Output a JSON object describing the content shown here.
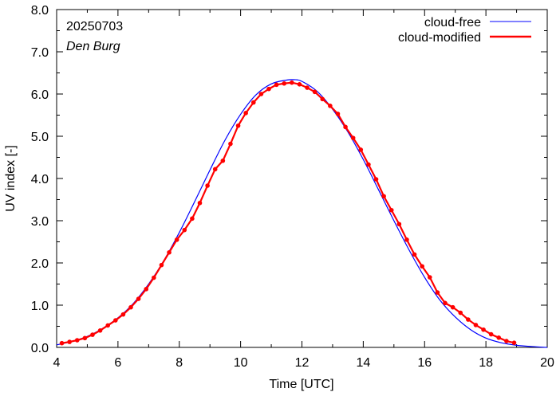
{
  "chart_data": {
    "type": "line",
    "date_label": "20250703",
    "location": "Den Burg",
    "xlabel": "Time  [UTC]",
    "ylabel": "UV index  [-]",
    "xlim": [
      4,
      20
    ],
    "ylim": [
      0,
      8
    ],
    "x_ticks": [
      4,
      6,
      8,
      10,
      12,
      14,
      16,
      18,
      20
    ],
    "x_tick_labels": [
      "4",
      "6",
      "8",
      "10",
      "12",
      "14",
      "16",
      "18",
      "20"
    ],
    "y_ticks": [
      0,
      1,
      2,
      3,
      4,
      5,
      6,
      7,
      8
    ],
    "y_tick_labels": [
      "0.0",
      "1.0",
      "2.0",
      "3.0",
      "4.0",
      "5.0",
      "6.0",
      "7.0",
      "8.0"
    ],
    "legend_position": "top-right",
    "grid": false,
    "series": [
      {
        "name": "cloud-free",
        "color": "#0000ff",
        "x": [
          4.0,
          4.5,
          5.0,
          5.5,
          6.0,
          6.5,
          7.0,
          7.5,
          8.0,
          8.5,
          9.0,
          9.5,
          10.0,
          10.5,
          11.0,
          11.5,
          11.75,
          12.0,
          12.5,
          13.0,
          13.5,
          14.0,
          14.5,
          15.0,
          15.5,
          16.0,
          16.5,
          17.0,
          17.5,
          18.0,
          18.5,
          19.0,
          19.5,
          20.0
        ],
        "y": [
          0.06,
          0.14,
          0.26,
          0.45,
          0.7,
          1.04,
          1.5,
          2.06,
          2.72,
          3.45,
          4.2,
          4.92,
          5.52,
          5.98,
          6.24,
          6.33,
          6.34,
          6.3,
          6.06,
          5.64,
          5.1,
          4.45,
          3.73,
          3.0,
          2.3,
          1.66,
          1.12,
          0.72,
          0.42,
          0.22,
          0.11,
          0.05,
          0.02,
          0.0
        ]
      },
      {
        "name": "cloud-modified",
        "color": "#ff0000",
        "x": [
          4.17,
          4.42,
          4.67,
          4.92,
          5.17,
          5.42,
          5.67,
          5.92,
          6.17,
          6.42,
          6.67,
          6.92,
          7.17,
          7.42,
          7.67,
          7.92,
          8.17,
          8.42,
          8.67,
          8.92,
          9.17,
          9.42,
          9.67,
          9.92,
          10.17,
          10.42,
          10.67,
          10.92,
          11.17,
          11.42,
          11.67,
          11.92,
          12.17,
          12.42,
          12.67,
          12.92,
          13.17,
          13.42,
          13.67,
          13.92,
          14.17,
          14.42,
          14.67,
          14.92,
          15.17,
          15.42,
          15.67,
          15.92,
          16.17,
          16.42,
          16.67,
          16.92,
          17.17,
          17.42,
          17.67,
          17.92,
          18.17,
          18.42,
          18.67,
          18.92
        ],
        "y": [
          0.1,
          0.13,
          0.17,
          0.22,
          0.3,
          0.4,
          0.52,
          0.64,
          0.78,
          0.95,
          1.15,
          1.38,
          1.65,
          1.95,
          2.25,
          2.55,
          2.78,
          3.05,
          3.42,
          3.83,
          4.22,
          4.42,
          4.82,
          5.25,
          5.55,
          5.8,
          6.0,
          6.12,
          6.22,
          6.25,
          6.27,
          6.23,
          6.15,
          6.05,
          5.88,
          5.72,
          5.53,
          5.22,
          4.96,
          4.68,
          4.33,
          3.98,
          3.58,
          3.25,
          2.92,
          2.55,
          2.2,
          1.92,
          1.66,
          1.3,
          1.05,
          0.95,
          0.82,
          0.66,
          0.53,
          0.42,
          0.31,
          0.23,
          0.15,
          0.11
        ]
      }
    ]
  }
}
